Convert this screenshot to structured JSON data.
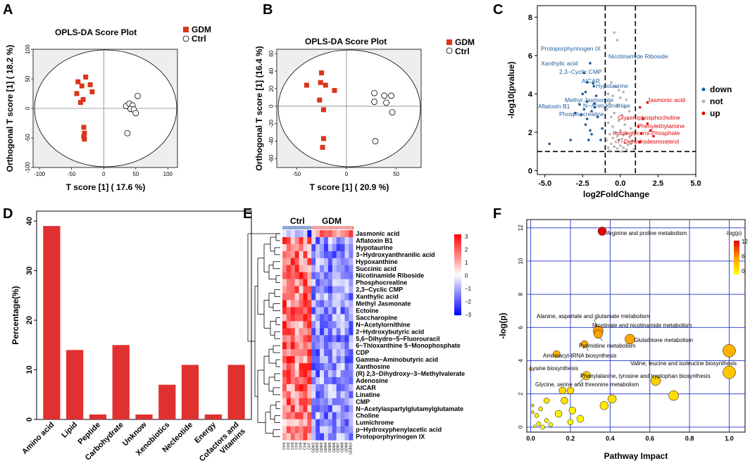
{
  "panels": {
    "A": {
      "label": "A",
      "title": "OPLS-DA Score Plot",
      "xlabel": "T score [1] ( 17.6 %)",
      "ylabel": "Orthogonal T score [1] ( 18.2 %)",
      "xticks": [
        "-100",
        "-50",
        "0",
        "50",
        "100"
      ],
      "yticks": [
        "-100",
        "-50",
        "0",
        "50",
        "100"
      ],
      "legend": [
        "GDM",
        "Ctrl"
      ]
    },
    "B": {
      "label": "B",
      "title": "OPLS-DA Score Plot",
      "xlabel": "T score [1] ( 20.9 %)",
      "ylabel": "Orthogonal T score [1] (16.4 %)",
      "xticks": [
        "-50",
        "0",
        "50"
      ],
      "yticks": [
        "-60",
        "-40",
        "-20",
        "0",
        "20",
        "40",
        "60"
      ],
      "legend": [
        "GDM",
        "Ctrl"
      ]
    },
    "C": {
      "label": "C",
      "xlabel": "log2FoldChange",
      "ylabel": "-log10(pvalue)",
      "xticks": [
        "-5.0",
        "-2.5",
        "0.0",
        "2.5",
        "5.0"
      ],
      "yticks": [
        "0",
        "2",
        "4",
        "6",
        "8"
      ],
      "legend": [
        "down",
        "not",
        "up"
      ]
    },
    "D": {
      "label": "D",
      "ylabel": "Percentage(%)",
      "yticks": [
        "0",
        "10",
        "20",
        "30",
        "40"
      ]
    },
    "E": {
      "label": "E",
      "groups": [
        "Ctrl",
        "GDM"
      ],
      "colorbar_ticks": [
        "3",
        "2",
        "1",
        "0",
        "−1",
        "−2",
        "−3"
      ],
      "rows": [
        "Jasmonic acid",
        "Aflatoxin B1",
        "Hypotaurine",
        "3−Hydroxyanthranilic acid",
        "Hypoxanthine",
        "Succinic acid",
        "Nicotinamide Riboside",
        "Phosphocreatine",
        "2,3−Cyclic CMP",
        "Xanthylic acid",
        "Methyl Jasmonate",
        "Ectoine",
        "Saccharopine",
        "N−Acetylornithine",
        "2−Hydroxybutyric acid",
        "5,6−Dihydro−5−Fluorouracil",
        "6−Thioxanthine 5−Monophosphate",
        "CDP",
        "Gamma−Aminobutyric acid",
        "Xanthosine",
        "(R) 2,3−Dihydroxy−3−Methylvalerate",
        "Adenosine",
        "AICAR",
        "Linatine",
        "CMP",
        "N−Acetylaspartylglutamylglutamate",
        "Choline",
        "Lumichrome",
        "p−Hydroxyphenylacetic acid",
        "Protoporphyrinogen IX"
      ],
      "columns": [
        "Ctrl1",
        "Ctrl2",
        "Ctrl3",
        "Ctrl4",
        "Ctrl5",
        "Ctrl6",
        "Ctrl7",
        "GDM1",
        "GDM2",
        "GDM3",
        "GDM4",
        "GDM5",
        "GDM6",
        "GDM7",
        "GDM8",
        "GDM9",
        "GDM10"
      ]
    },
    "F": {
      "label": "F",
      "xlabel": "Pathway Impact",
      "ylabel": "-log(p)",
      "legend_title": "-log(p)",
      "xticks": [
        "0.0",
        "0.2",
        "0.4",
        "0.6",
        "0.8",
        "1.0"
      ],
      "yticks": [
        "0",
        "2",
        "4",
        "6",
        "8",
        "10",
        "12"
      ],
      "colorbar_ticks": [
        "12",
        "6",
        "0"
      ]
    }
  },
  "chart_data": [
    {
      "panel": "A",
      "type": "scatter",
      "title": "OPLS-DA Score Plot",
      "xlabel": "T score [1] ( 17.6 %)",
      "ylabel": "Orthogonal T score [1] ( 18.2 %)",
      "xlim": [
        -110,
        115
      ],
      "ylim": [
        -100,
        100
      ],
      "series": [
        {
          "name": "GDM",
          "marker": "square",
          "color": "#d9361b",
          "points": [
            [
              -28,
              53
            ],
            [
              -40,
              45
            ],
            [
              -34,
              38
            ],
            [
              -21,
              40
            ],
            [
              -42,
              25
            ],
            [
              -18,
              28
            ],
            [
              -32,
              15
            ],
            [
              -36,
              10
            ],
            [
              -31,
              -32
            ],
            [
              -30,
              -42
            ],
            [
              -31,
              -48
            ],
            [
              -30,
              -52
            ]
          ]
        },
        {
          "name": "Ctrl",
          "marker": "circle",
          "color": "#000000",
          "points": [
            [
              53,
              21
            ],
            [
              35,
              4
            ],
            [
              40,
              8
            ],
            [
              45,
              5
            ],
            [
              42,
              -1
            ],
            [
              47,
              -2
            ],
            [
              50,
              -8
            ],
            [
              37,
              -42
            ]
          ]
        }
      ]
    },
    {
      "panel": "B",
      "type": "scatter",
      "title": "OPLS-DA Score Plot",
      "xlabel": "T score [1] ( 20.9 %)",
      "ylabel": "Orthogonal T score [1] (16.4 %)",
      "xlim": [
        -70,
        75
      ],
      "ylim": [
        -70,
        65
      ],
      "series": [
        {
          "name": "GDM",
          "marker": "square",
          "color": "#d9361b",
          "points": [
            [
              -25,
              38
            ],
            [
              -26,
              27
            ],
            [
              -40,
              24
            ],
            [
              -21,
              24
            ],
            [
              -12,
              18
            ],
            [
              -27,
              7
            ],
            [
              -23,
              -4
            ],
            [
              -23,
              -37
            ],
            [
              -24,
              -47
            ]
          ]
        },
        {
          "name": "Ctrl",
          "marker": "circle",
          "color": "#000000",
          "points": [
            [
              28,
              15
            ],
            [
              38,
              12
            ],
            [
              45,
              12
            ],
            [
              28,
              5
            ],
            [
              40,
              4
            ],
            [
              46,
              -7
            ],
            [
              29,
              -40
            ]
          ]
        }
      ]
    },
    {
      "panel": "C",
      "type": "scatter",
      "xlabel": "log2FoldChange",
      "ylabel": "-log10(pvalue)",
      "xlim": [
        -5.5,
        5
      ],
      "ylim": [
        -0.2,
        8.6
      ],
      "thresholds": {
        "x": [
          -1,
          1
        ],
        "y": 1
      },
      "series": [
        {
          "name": "down",
          "color": "#1f5c99",
          "points": [
            [
              -2.0,
              5.6
            ],
            [
              -2.4,
              5.1
            ],
            [
              -2.2,
              4.6
            ],
            [
              -1.8,
              4.55
            ],
            [
              -1.75,
              4.4
            ],
            [
              -2.3,
              4.1
            ],
            [
              -2.5,
              4.0
            ],
            [
              -1.6,
              3.9
            ],
            [
              -2.2,
              3.6
            ],
            [
              -1.7,
              3.5
            ],
            [
              -2.7,
              3.45
            ],
            [
              -2.4,
              3.2
            ],
            [
              -3.0,
              3.0
            ],
            [
              -2.6,
              2.9
            ],
            [
              -1.7,
              3.3
            ],
            [
              -1.9,
              3.1
            ],
            [
              -2.2,
              2.7
            ],
            [
              -1.5,
              2.8
            ],
            [
              -2.3,
              2.4
            ],
            [
              -2.0,
              2.1
            ],
            [
              -1.9,
              1.9
            ],
            [
              -2.1,
              1.6
            ],
            [
              -3.3,
              1.6
            ],
            [
              -4.7,
              1.4
            ],
            [
              -1.3,
              1.6
            ],
            [
              -1.2,
              2.2
            ]
          ]
        },
        {
          "name": "not",
          "color": "#b3b3b3",
          "points": [
            [
              -0.4,
              7.2
            ],
            [
              -0.2,
              6.8
            ],
            [
              -0.6,
              4.6
            ],
            [
              -0.3,
              4.4
            ],
            [
              -0.1,
              4.2
            ],
            [
              0.2,
              4.1
            ],
            [
              -0.8,
              4.0
            ],
            [
              -0.5,
              3.9
            ],
            [
              0.0,
              3.8
            ],
            [
              0.4,
              3.7
            ],
            [
              -0.7,
              3.5
            ],
            [
              -0.2,
              3.4
            ],
            [
              0.3,
              3.3
            ],
            [
              -0.9,
              3.2
            ],
            [
              0.6,
              3.1
            ],
            [
              -0.4,
              3.0
            ],
            [
              0.1,
              2.9
            ],
            [
              -0.6,
              2.8
            ],
            [
              0.5,
              2.7
            ],
            [
              -0.1,
              2.6
            ],
            [
              -0.8,
              2.5
            ],
            [
              0.3,
              2.4
            ],
            [
              -0.5,
              2.3
            ],
            [
              0.7,
              2.2
            ],
            [
              0.0,
              2.1
            ],
            [
              -0.3,
              2.0
            ],
            [
              0.4,
              1.95
            ],
            [
              -0.7,
              1.9
            ],
            [
              0.2,
              1.85
            ],
            [
              -0.2,
              1.8
            ],
            [
              0.6,
              1.75
            ],
            [
              -0.5,
              1.7
            ],
            [
              0.1,
              1.65
            ],
            [
              -0.9,
              1.6
            ],
            [
              0.8,
              1.55
            ],
            [
              -0.3,
              1.5
            ],
            [
              0.3,
              1.45
            ],
            [
              -0.6,
              1.4
            ],
            [
              0.5,
              1.35
            ],
            [
              0.0,
              1.3
            ],
            [
              -0.4,
              1.25
            ],
            [
              0.2,
              1.2
            ],
            [
              -0.2,
              1.15
            ],
            [
              0.4,
              1.1
            ],
            [
              -0.7,
              1.05
            ],
            [
              0.1,
              1.0
            ],
            [
              -0.1,
              1.6
            ],
            [
              0.7,
              1.4
            ],
            [
              -0.8,
              1.2
            ],
            [
              0.9,
              1.1
            ]
          ]
        },
        {
          "name": "up",
          "color": "#e00000",
          "points": [
            [
              1.8,
              3.55
            ],
            [
              1.3,
              3.3
            ],
            [
              1.5,
              2.7
            ],
            [
              1.8,
              2.45
            ],
            [
              1.2,
              2.3
            ],
            [
              2.0,
              2.1
            ],
            [
              2.2,
              1.8
            ],
            [
              1.4,
              1.95
            ],
            [
              1.3,
              1.5
            ]
          ]
        }
      ],
      "annotations": [
        {
          "text": "Protoporphyrinogen IX",
          "group": "down"
        },
        {
          "text": "Nicotinamide Riboside",
          "group": "down"
        },
        {
          "text": "Xanthylic acid",
          "group": "down"
        },
        {
          "text": "2,3−Cyclic CMP",
          "group": "down"
        },
        {
          "text": "AICAR",
          "group": "down"
        },
        {
          "text": "Hypotaurine",
          "group": "down"
        },
        {
          "text": "Methyl Jasmonate",
          "group": "down"
        },
        {
          "text": "N−Acetylornithine",
          "group": "down"
        },
        {
          "text": "Aflatoxin B1",
          "group": "down"
        },
        {
          "text": "Phosphocreatine",
          "group": "down"
        },
        {
          "text": "Jasmonic acid",
          "group": "up"
        },
        {
          "text": "Glycerophosphocholine",
          "group": "up"
        },
        {
          "text": "Phenylethylamine",
          "group": "up"
        },
        {
          "text": "Indoleglycerol Phosphate",
          "group": "up"
        },
        {
          "text": "7−Dehydrodesmosterol",
          "group": "up"
        }
      ]
    },
    {
      "panel": "D",
      "type": "bar",
      "ylabel": "Percentage(%)",
      "ylim": [
        0,
        40
      ],
      "categories": [
        "Amino acid",
        "Lipid",
        "Peptide",
        "Carbohydrate",
        "Unknow",
        "Xenobiotics",
        "Necleotide",
        "Energy",
        "Cofactors and Vitamins"
      ],
      "values": [
        39,
        14,
        1,
        15,
        1,
        7,
        11,
        1,
        11
      ],
      "color": "#e03030"
    },
    {
      "panel": "E",
      "type": "heatmap",
      "colorscale": {
        "min": -3,
        "max": 3,
        "low": "#0000ff",
        "mid": "#ffffff",
        "high": "#ff0000"
      },
      "note": "first 7 columns Ctrl (mostly high), last 10 GDM (mostly low); first row reversed"
    },
    {
      "panel": "F",
      "type": "scatter",
      "xlabel": "Pathway Impact",
      "ylabel": "-log(p)",
      "xlim": [
        -0.02,
        1.08
      ],
      "ylim": [
        -0.3,
        12.5
      ],
      "points": [
        {
          "label": "Arginine and proline metabolism",
          "x": 0.36,
          "y": 11.8,
          "size": 6
        },
        {
          "label": "Alanine, aspartate and glutamate metabolism",
          "x": 0.34,
          "y": 5.8,
          "size": 7
        },
        {
          "label": "Nicotinate and nicotinamide metabolism",
          "x": 0.34,
          "y": 5.6,
          "size": 6
        },
        {
          "label": "Glutathione metabolism",
          "x": 0.5,
          "y": 5.3,
          "size": 7
        },
        {
          "label": "Pyrimidine metabolism",
          "x": 0.27,
          "y": 5.0,
          "size": 5
        },
        {
          "label": "Aminoacyl-tRNA biosynthesis",
          "x": 0.13,
          "y": 4.4,
          "size": 5
        },
        {
          "label": "Valine, leucine and isoleucine biosynthesis",
          "x": 1.0,
          "y": 4.6,
          "size": 9
        },
        {
          "label": "Lysine biosynthesis",
          "x": 0.0,
          "y": 3.5,
          "size": 2
        },
        {
          "label": "Phenylalanine, tyrosine and tryptophan biosynthesis",
          "x": 1.0,
          "y": 3.3,
          "size": 9
        },
        {
          "label": "Glycine, serine and threonine metabolism",
          "x": 0.28,
          "y": 3.1,
          "size": 6
        },
        {
          "x": 0.63,
          "y": 2.8,
          "size": 7
        },
        {
          "x": 0.72,
          "y": 1.9,
          "size": 7
        },
        {
          "x": 0.41,
          "y": 1.7,
          "size": 6
        },
        {
          "x": 0.37,
          "y": 1.3,
          "size": 6
        },
        {
          "x": 0.2,
          "y": 2.2,
          "size": 5
        },
        {
          "x": 0.16,
          "y": 2.2,
          "size": 5
        },
        {
          "x": 0.17,
          "y": 1.6,
          "size": 5
        },
        {
          "x": 0.08,
          "y": 1.6,
          "size": 4
        },
        {
          "x": 0.21,
          "y": 1.0,
          "size": 5
        },
        {
          "x": 0.25,
          "y": 0.5,
          "size": 5
        },
        {
          "x": 0.14,
          "y": 0.8,
          "size": 5
        },
        {
          "x": 0.2,
          "y": 0.3,
          "size": 4
        },
        {
          "x": 0.05,
          "y": 1.1,
          "size": 3
        },
        {
          "x": 0.03,
          "y": 0.7,
          "size": 3
        },
        {
          "x": 0.08,
          "y": 0.4,
          "size": 3
        },
        {
          "x": 0.1,
          "y": 0.15,
          "size": 3
        },
        {
          "x": 0.04,
          "y": 0.2,
          "size": 3
        },
        {
          "x": 0.01,
          "y": 1.3,
          "size": 2
        },
        {
          "x": 0.01,
          "y": 0.9,
          "size": 2
        },
        {
          "x": 0.02,
          "y": 0.05,
          "size": 2
        },
        {
          "x": 0.06,
          "y": 0.0,
          "size": 3
        }
      ],
      "colorscale": {
        "min": 0,
        "max": 12,
        "low": "#ffff00",
        "high": "#e00000"
      }
    }
  ]
}
